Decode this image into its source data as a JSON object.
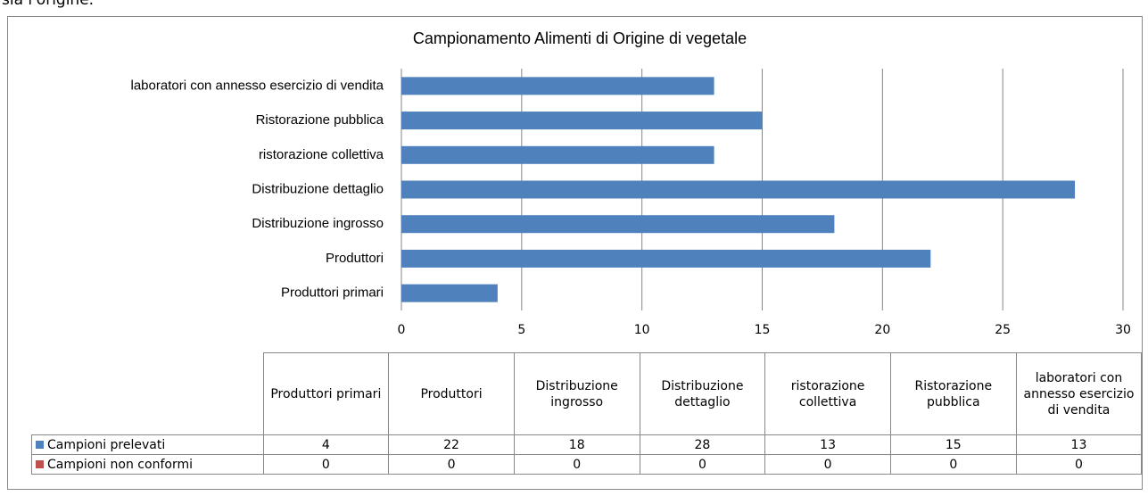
{
  "intro_text": "sia l'origine.",
  "chart_data": {
    "type": "bar",
    "orientation": "horizontal",
    "title": "Campionamento Alimenti di Origine di vegetale",
    "categories": [
      "Produttori primari",
      "Produttori",
      "Distribuzione ingrosso",
      "Distribuzione dettaglio",
      "ristorazione collettiva",
      "Ristorazione pubblica",
      "laboratori con annesso esercizio di vendita"
    ],
    "series": [
      {
        "name": "Campioni prelevati",
        "color": "#4f81bd",
        "values": [
          4,
          22,
          18,
          28,
          13,
          15,
          13
        ]
      },
      {
        "name": "Campioni non conformi",
        "color": "#c0504d",
        "values": [
          0,
          0,
          0,
          0,
          0,
          0,
          0
        ]
      }
    ],
    "xlim": [
      0,
      30
    ],
    "xticks": [
      0,
      5,
      10,
      15,
      20,
      25,
      30
    ],
    "grid": true,
    "data_table": true
  }
}
